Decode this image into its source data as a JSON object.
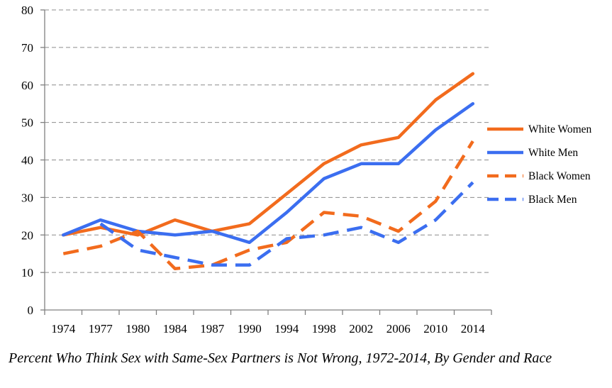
{
  "chart_data": {
    "type": "line",
    "title": "",
    "caption": "Percent Who Think Sex with Same-Sex Partners is Not Wrong, 1972-2014, By Gender and Race",
    "xlabel": "",
    "ylabel": "",
    "categories": [
      "1974",
      "1977",
      "1980",
      "1984",
      "1987",
      "1990",
      "1994",
      "1998",
      "2002",
      "2006",
      "2010",
      "2014"
    ],
    "ylim": [
      0,
      80
    ],
    "yticks": [
      0,
      10,
      20,
      30,
      40,
      50,
      60,
      70,
      80
    ],
    "grid": "horizontal dashed",
    "legend_position": "right",
    "series": [
      {
        "name": "White Women",
        "color": "#f26b1d",
        "style": "solid",
        "values": [
          20,
          22,
          20,
          24,
          21,
          23,
          31,
          39,
          44,
          46,
          56,
          63
        ]
      },
      {
        "name": "White Men",
        "color": "#3b6ef0",
        "style": "solid",
        "values": [
          20,
          24,
          21,
          20,
          21,
          18,
          26,
          35,
          39,
          39,
          48,
          55
        ]
      },
      {
        "name": "Black Women",
        "color": "#f26b1d",
        "style": "dashed",
        "values": [
          15,
          17,
          21,
          11,
          12,
          16,
          18,
          26,
          25,
          21,
          29,
          45
        ]
      },
      {
        "name": "Black Men",
        "color": "#3b6ef0",
        "style": "dashed",
        "values": [
          null,
          23,
          16,
          14,
          12,
          12,
          19,
          20,
          22,
          18,
          24,
          34
        ]
      }
    ]
  }
}
